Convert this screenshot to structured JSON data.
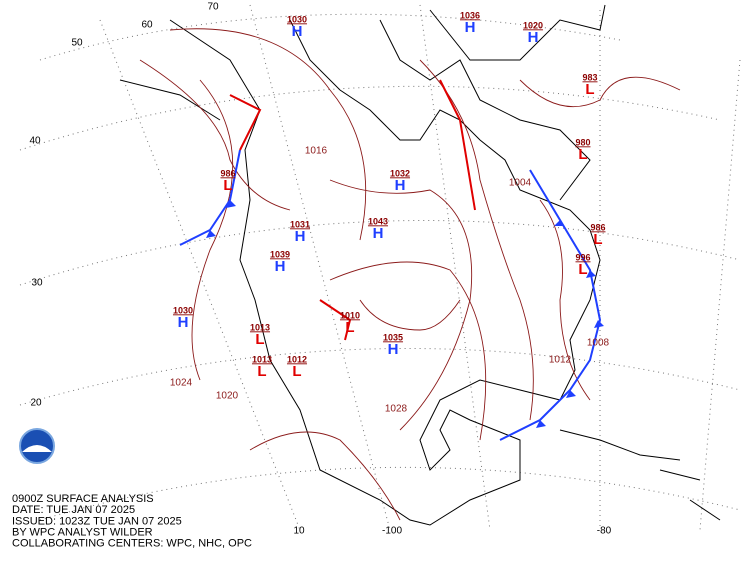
{
  "caption": [
    "0900Z SURFACE ANALYSIS",
    "DATE: TUE JAN 07 2025",
    "ISSUED: 1023Z TUE JAN 07 2025",
    "BY WPC ANALYST WILDER",
    "COLLABORATING CENTERS: WPC, NHC, OPC"
  ],
  "grid_labels": [
    "70",
    "60",
    "50",
    "40",
    "30",
    "20",
    "10",
    "-100",
    "-80"
  ],
  "centers": [
    {
      "letter": "H",
      "pressure": "1030"
    },
    {
      "letter": "H",
      "pressure": "1036"
    },
    {
      "letter": "H",
      "pressure": "1020"
    },
    {
      "letter": "H",
      "pressure": "1032"
    },
    {
      "letter": "H",
      "pressure": "1043"
    },
    {
      "letter": "H",
      "pressure": "1039"
    },
    {
      "letter": "H",
      "pressure": "1031"
    },
    {
      "letter": "H",
      "pressure": "1030"
    },
    {
      "letter": "H",
      "pressure": "1035"
    },
    {
      "letter": "L",
      "pressure": "986"
    },
    {
      "letter": "L",
      "pressure": "1013"
    },
    {
      "letter": "L",
      "pressure": "1013"
    },
    {
      "letter": "L",
      "pressure": "1012"
    },
    {
      "letter": "L",
      "pressure": "996"
    },
    {
      "letter": "L",
      "pressure": "986"
    },
    {
      "letter": "L",
      "pressure": "983"
    },
    {
      "letter": "L",
      "pressure": "980"
    },
    {
      "letter": "L",
      "pressure": "1010"
    }
  ],
  "isobar_labels": [
    "1024",
    "1020",
    "1016",
    "1028",
    "1012",
    "1008",
    "1004"
  ]
}
